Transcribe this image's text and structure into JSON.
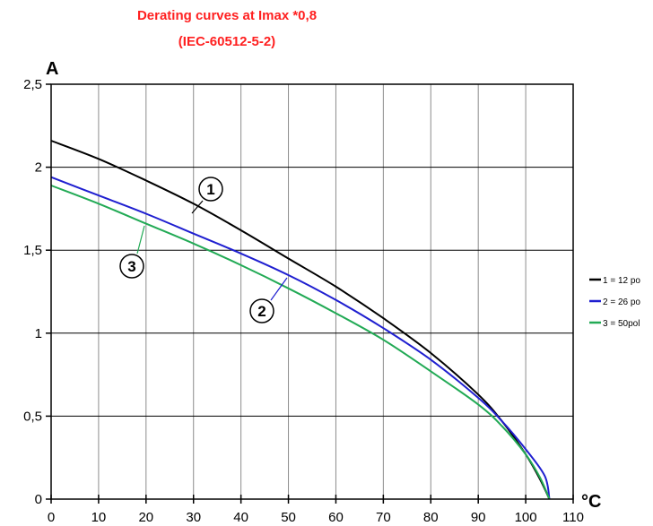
{
  "chart_data": {
    "type": "line",
    "title": "Derating curves at Imax *0,8",
    "subtitle": "(IEC-60512-5-2)",
    "xlabel": "°C",
    "ylabel": "A",
    "xlim": [
      0,
      110
    ],
    "ylim": [
      0,
      2.5
    ],
    "x_ticks": [
      "0",
      "10",
      "20",
      "30",
      "40",
      "50",
      "60",
      "70",
      "80",
      "90",
      "100",
      "110"
    ],
    "y_ticks": [
      "0",
      "0,5",
      "1",
      "1,5",
      "2",
      "2,5"
    ],
    "grid": true,
    "legend_position": "right",
    "series": [
      {
        "name": "1 = 12 po",
        "callout": "1",
        "color": "#000000",
        "points": [
          [
            0,
            2.16
          ],
          [
            10,
            2.05
          ],
          [
            20,
            1.92
          ],
          [
            30,
            1.78
          ],
          [
            40,
            1.62
          ],
          [
            50,
            1.45
          ],
          [
            60,
            1.28
          ],
          [
            70,
            1.09
          ],
          [
            80,
            0.88
          ],
          [
            90,
            0.63
          ],
          [
            95,
            0.47
          ],
          [
            100,
            0.27
          ],
          [
            103,
            0.12
          ],
          [
            105,
            0.0
          ]
        ]
      },
      {
        "name": "2 = 26 po",
        "callout": "2",
        "color": "#1f1fd0",
        "points": [
          [
            0,
            1.94
          ],
          [
            10,
            1.83
          ],
          [
            20,
            1.72
          ],
          [
            30,
            1.6
          ],
          [
            40,
            1.48
          ],
          [
            50,
            1.35
          ],
          [
            60,
            1.2
          ],
          [
            70,
            1.03
          ],
          [
            80,
            0.84
          ],
          [
            90,
            0.61
          ],
          [
            95,
            0.47
          ],
          [
            100,
            0.3
          ],
          [
            104,
            0.14
          ],
          [
            105,
            0.0
          ]
        ]
      },
      {
        "name": "3 = 50pol",
        "callout": "3",
        "color": "#22aa55",
        "points": [
          [
            0,
            1.89
          ],
          [
            10,
            1.78
          ],
          [
            20,
            1.66
          ],
          [
            30,
            1.54
          ],
          [
            40,
            1.41
          ],
          [
            50,
            1.27
          ],
          [
            60,
            1.12
          ],
          [
            70,
            0.96
          ],
          [
            80,
            0.77
          ],
          [
            90,
            0.57
          ],
          [
            95,
            0.44
          ],
          [
            100,
            0.27
          ],
          [
            103,
            0.13
          ],
          [
            105,
            0.0
          ]
        ]
      }
    ]
  }
}
